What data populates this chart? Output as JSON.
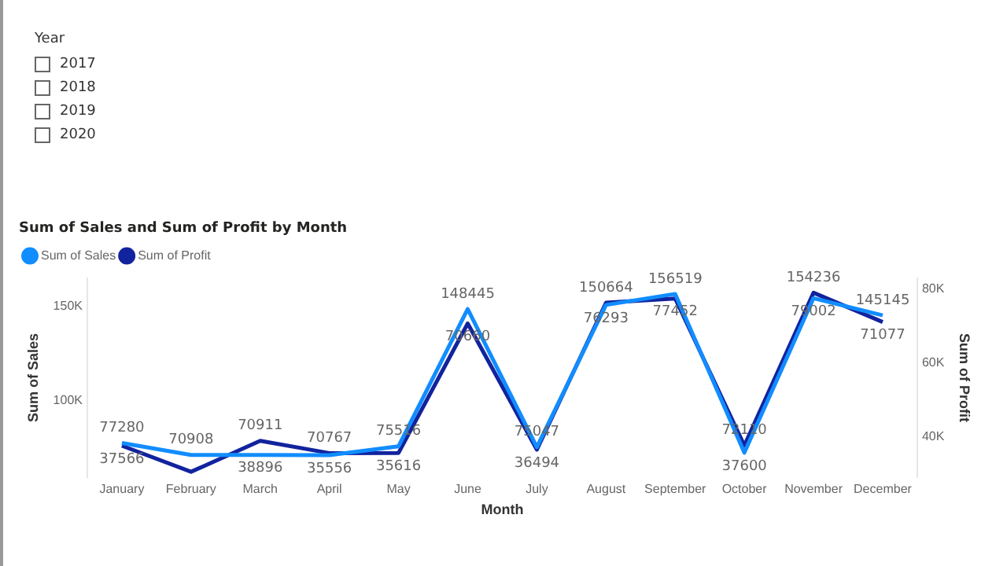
{
  "chart_data": {
    "type": "line",
    "title": "Sum of Sales and Sum of Profit by Month",
    "xlabel": "Month",
    "ylabel": "Sum of Sales",
    "y2label": "Sum of Profit",
    "annotations": [
      "Year",
      "2017",
      "2018",
      "2019",
      "2020"
    ],
    "categories": [
      "January",
      "February",
      "March",
      "April",
      "May",
      "June",
      "July",
      "August",
      "September",
      "October",
      "November",
      "December"
    ],
    "series": [
      {
        "name": "Sum of Sales",
        "color": "#118dff",
        "values": [
          77280,
          70908,
          70911,
          70767,
          75516,
          148445,
          75047,
          150664,
          156519,
          72110,
          154236,
          145145
        ],
        "value_labels": [
          "77280",
          "70908",
          "70911",
          "70767",
          "75516",
          "148445",
          "75047",
          "150664",
          "156519",
          "72110",
          "154236",
          "145145"
        ]
      },
      {
        "name": "Sum of Profit",
        "color": "#12239e",
        "axis": "y2",
        "values": [
          37566,
          30500,
          38896,
          35556,
          35616,
          70660,
          36494,
          76293,
          77452,
          37600,
          79002,
          71077
        ],
        "value_labels": [
          "37566",
          null,
          "38896",
          "35556",
          "35616",
          "70660",
          "36494",
          "76293",
          "77452",
          "37600",
          "79002",
          "71077"
        ]
      }
    ],
    "ylim": [
      59000,
      165000
    ],
    "yticks": [
      {
        "value": 100000,
        "label": "100K"
      },
      {
        "value": 150000,
        "label": "150K"
      }
    ],
    "y2lim": [
      29000,
      83000
    ],
    "y2ticks": [
      {
        "value": 40000,
        "label": "40K"
      },
      {
        "value": 60000,
        "label": "60K"
      },
      {
        "value": 80000,
        "label": "80K"
      }
    ],
    "grid": false,
    "legend": "top left",
    "marker": "none",
    "line_style": "solid"
  }
}
